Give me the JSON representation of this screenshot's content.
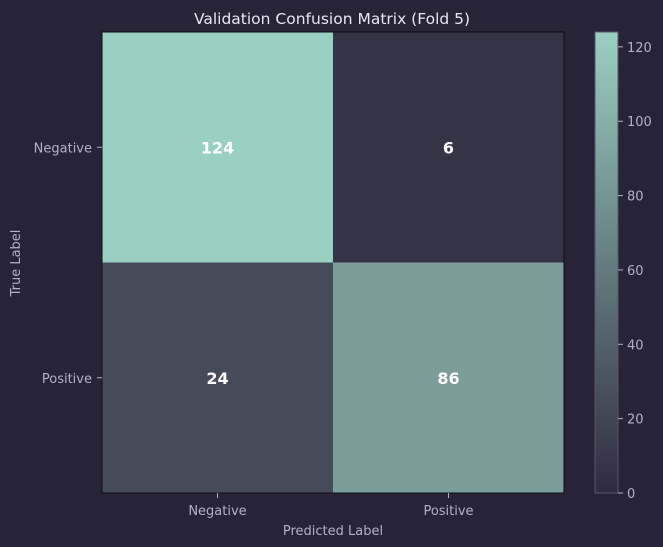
{
  "chart_data": {
    "type": "heatmap",
    "title": "Validation Confusion Matrix (Fold 5)",
    "xlabel": "Predicted Label",
    "ylabel": "True Label",
    "x_categories": [
      "Negative",
      "Positive"
    ],
    "y_categories": [
      "Negative",
      "Positive"
    ],
    "values": [
      [
        124,
        6
      ],
      [
        24,
        86
      ]
    ],
    "colorbar": {
      "range": [
        0,
        124
      ],
      "ticks": [
        0,
        20,
        40,
        60,
        80,
        100,
        120
      ],
      "colors": {
        "low": "#302b40",
        "high": "#9ad0c1"
      }
    },
    "grid": false
  }
}
